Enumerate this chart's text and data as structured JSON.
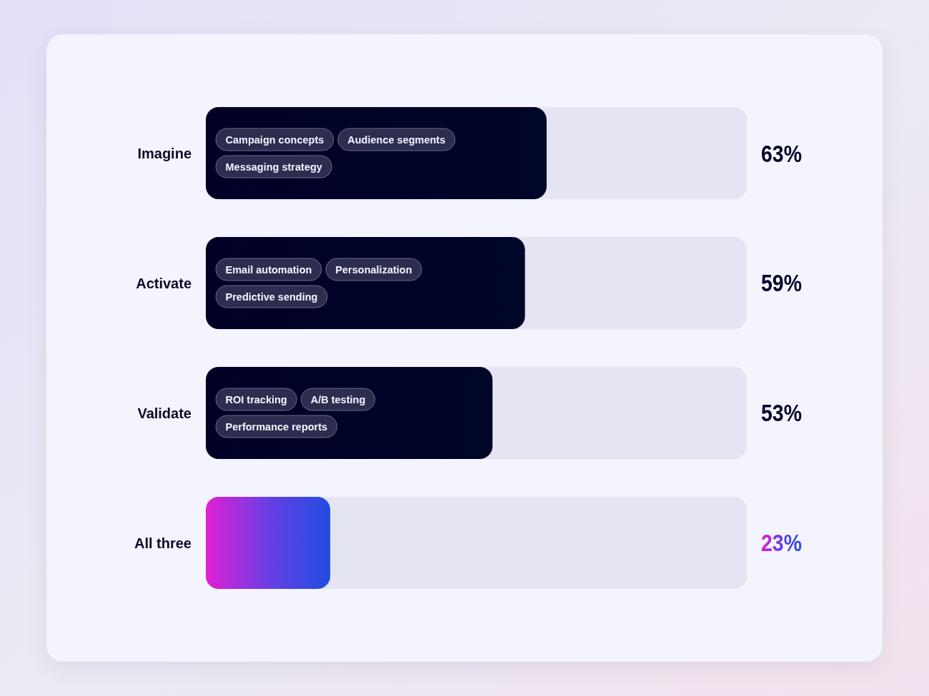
{
  "chart_data": {
    "type": "bar",
    "orientation": "horizontal",
    "categories": [
      "Imagine",
      "Activate",
      "Validate",
      "All three"
    ],
    "values": [
      63,
      59,
      53,
      23
    ],
    "colors": [
      "#000328",
      "#000328",
      "#000328",
      "#6a3ee4"
    ],
    "xlim": [
      0,
      100
    ],
    "tick_labels": "y",
    "value_labels": [
      "63%",
      "59%",
      "53%",
      "23%"
    ],
    "annotations": [
      "Campaign concepts",
      "Audience segments",
      "Messaging strategy",
      "Email automation",
      "Personalization",
      "Predictive sending",
      "ROI tracking",
      "A/B testing",
      "Performance reports"
    ]
  }
}
